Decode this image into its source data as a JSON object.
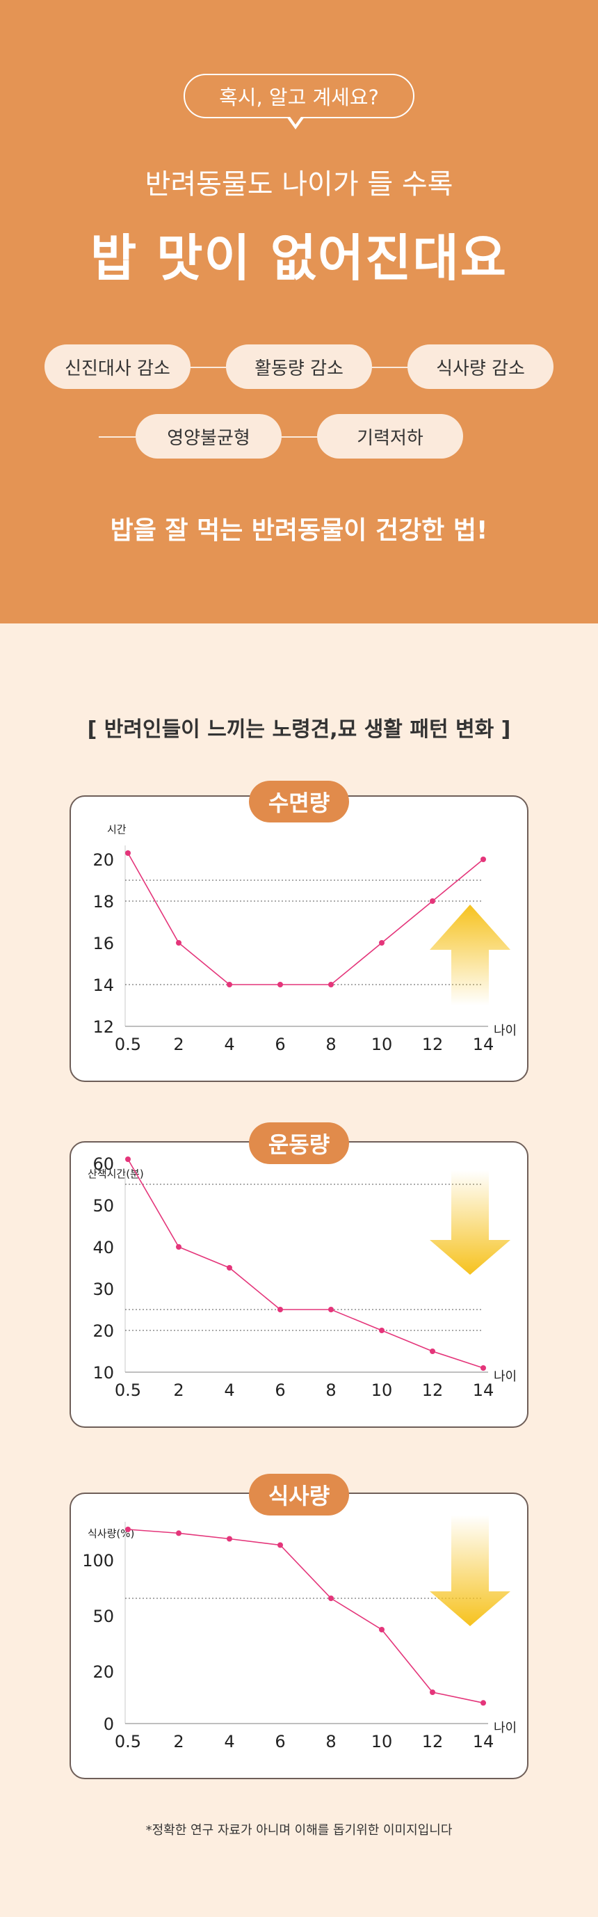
{
  "hero": {
    "bubble": "혹시, 알고 계세요?",
    "subtitle": "반려동물도 나이가 들 수록",
    "title": "밥 맛이 없어진대요",
    "pills": [
      "신진대사 감소",
      "활동량 감소",
      "식사량 감소",
      "영양불균형",
      "기력저하"
    ],
    "tagline": "밥을 잘 먹는 반려동물이 건강한 법!"
  },
  "section_title": "[ 반려인들이 느끼는 노령견,묘 생활 패턴 변화 ]",
  "footnote": "*정확한 연구 자료가 아니며 이해를 돕기위한 이미지입니다",
  "colors": {
    "hero_bg": "#e49454",
    "page_bg": "#fdeee0",
    "badge": "#e18b4b",
    "line": "#e4357a",
    "arrow": "#f6c21e"
  },
  "chart_data": [
    {
      "type": "line",
      "badge": "수면량",
      "ylabel": "시간",
      "xlabel": "나이",
      "x": [
        "0.5",
        "2",
        "4",
        "6",
        "8",
        "10",
        "12",
        "14"
      ],
      "y": [
        20.3,
        16,
        14,
        14,
        14,
        16,
        18,
        20
      ],
      "yticks": [
        "12",
        "14",
        "16",
        "18",
        "20"
      ],
      "ylim": [
        12,
        20
      ],
      "dotted_lines": [
        19,
        18,
        14
      ],
      "trend_arrow": "up"
    },
    {
      "type": "line",
      "badge": "운동량",
      "ylabel": "산책시간(분)",
      "xlabel": "나이",
      "x": [
        "0.5",
        "2",
        "4",
        "6",
        "8",
        "10",
        "12",
        "14"
      ],
      "y": [
        61,
        40,
        35,
        25,
        25,
        20,
        15,
        11
      ],
      "yticks": [
        "10",
        "20",
        "30",
        "40",
        "50",
        "60"
      ],
      "ylim": [
        10,
        60
      ],
      "dotted_lines": [
        55,
        25,
        20
      ],
      "trend_arrow": "down"
    },
    {
      "type": "line",
      "badge": "식사량",
      "ylabel": "식사량(%)",
      "xlabel": "나이",
      "x": [
        "0.5",
        "2",
        "4",
        "6",
        "8",
        "10",
        "12",
        "14"
      ],
      "y": [
        3.1,
        3.04,
        2.95,
        2.85,
        2.0,
        1.5,
        0.5,
        0.33
      ],
      "yticks": [
        "0",
        "20",
        "50",
        "100"
      ],
      "ylim": [
        0,
        3
      ],
      "dotted_lines": [
        2.0
      ],
      "trend_arrow": "down"
    }
  ]
}
